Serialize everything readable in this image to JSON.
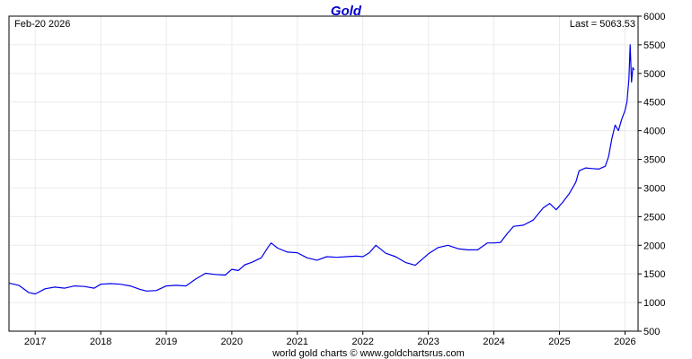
{
  "page": {
    "title": "Gold",
    "date_label": "Feb-20  2026",
    "last_label": "Last = 5063.53",
    "footer": "world gold charts © www.goldchartsrus.com"
  },
  "colors": {
    "title": "#0000cc",
    "line": "#0000ee",
    "grid": "#eaeaea",
    "frame": "#000000"
  },
  "chart_data": {
    "type": "line",
    "title": "Gold",
    "xlabel": "",
    "ylabel": "",
    "ylim": [
      500,
      6000
    ],
    "xlim": [
      2016.6,
      2026.2
    ],
    "grid": true,
    "x_ticks": [
      2017,
      2018,
      2019,
      2020,
      2021,
      2022,
      2023,
      2024,
      2025,
      2026
    ],
    "x_tick_labels": [
      "2017",
      "2018",
      "2019",
      "2020",
      "2021",
      "2022",
      "2023",
      "2024",
      "2025",
      "2026"
    ],
    "y_ticks": [
      500,
      1000,
      1500,
      2000,
      2500,
      3000,
      3500,
      4000,
      4500,
      5000,
      5500,
      6000
    ],
    "y_tick_labels": [
      "500",
      "1000",
      "1500",
      "2000",
      "2500",
      "3000",
      "3500",
      "4000",
      "4500",
      "5000",
      "5500",
      "6000"
    ],
    "series": [
      {
        "name": "",
        "x": [
          2016.6,
          2016.75,
          2016.9,
          2017.0,
          2017.15,
          2017.3,
          2017.45,
          2017.6,
          2017.75,
          2017.9,
          2018.0,
          2018.15,
          2018.3,
          2018.45,
          2018.6,
          2018.7,
          2018.85,
          2019.0,
          2019.15,
          2019.3,
          2019.45,
          2019.6,
          2019.75,
          2019.9,
          2020.0,
          2020.1,
          2020.2,
          2020.3,
          2020.45,
          2020.55,
          2020.6,
          2020.7,
          2020.85,
          2021.0,
          2021.15,
          2021.3,
          2021.45,
          2021.6,
          2021.75,
          2021.9,
          2022.0,
          2022.1,
          2022.2,
          2022.35,
          2022.5,
          2022.65,
          2022.8,
          2022.9,
          2023.0,
          2023.15,
          2023.3,
          2023.45,
          2023.6,
          2023.75,
          2023.9,
          2024.0,
          2024.1,
          2024.2,
          2024.3,
          2024.45,
          2024.6,
          2024.75,
          2024.85,
          2024.95,
          2025.05,
          2025.15,
          2025.25,
          2025.3,
          2025.4,
          2025.5,
          2025.6,
          2025.7,
          2025.75,
          2025.8,
          2025.85,
          2025.9,
          2025.95,
          2026.0,
          2026.03,
          2026.06,
          2026.08,
          2026.1,
          2026.12,
          2026.14
        ],
        "y": [
          1340,
          1300,
          1175,
          1150,
          1240,
          1270,
          1250,
          1290,
          1280,
          1250,
          1320,
          1330,
          1320,
          1290,
          1230,
          1200,
          1210,
          1290,
          1300,
          1290,
          1410,
          1510,
          1490,
          1480,
          1580,
          1560,
          1660,
          1700,
          1780,
          1960,
          2040,
          1950,
          1880,
          1870,
          1780,
          1740,
          1800,
          1790,
          1800,
          1810,
          1800,
          1870,
          2000,
          1860,
          1800,
          1700,
          1650,
          1750,
          1850,
          1960,
          2000,
          1940,
          1920,
          1920,
          2040,
          2040,
          2050,
          2200,
          2330,
          2350,
          2440,
          2650,
          2730,
          2620,
          2750,
          2900,
          3100,
          3300,
          3350,
          3340,
          3330,
          3380,
          3550,
          3860,
          4100,
          4000,
          4200,
          4350,
          4500,
          4900,
          5500,
          4850,
          5100,
          5063.53
        ]
      }
    ]
  }
}
